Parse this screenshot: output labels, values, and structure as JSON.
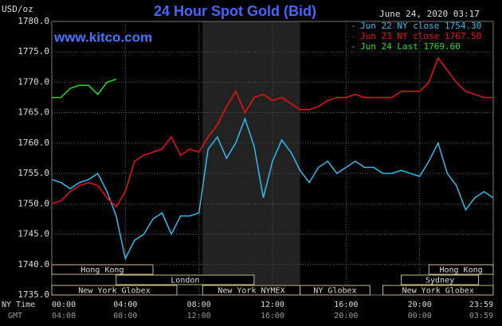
{
  "chart_data": {
    "type": "line",
    "title": "24 Hour Spot Gold (Bid)",
    "source": "www.kitco.com",
    "timestamp": "June 24, 2020 03:17",
    "y_label": "USD/oz",
    "x_label": "NY Time",
    "x2_label": "GMT",
    "x": [
      0,
      0.5,
      1,
      1.5,
      2,
      2.5,
      3,
      3.5,
      4,
      4.5,
      5,
      5.5,
      6,
      6.5,
      7,
      7.5,
      8,
      8.5,
      9,
      9.5,
      10,
      10.5,
      11,
      11.5,
      12,
      12.5,
      13,
      13.5,
      14,
      14.5,
      15,
      15.5,
      16,
      16.5,
      17,
      17.5,
      18,
      18.5,
      19,
      19.5,
      20,
      20.5,
      21,
      21.5,
      22,
      22.5,
      23,
      23.5,
      24
    ],
    "series": [
      {
        "name": "Jun 22 NY close 1754.30",
        "color": "#33bbee",
        "values": [
          1754,
          1753.5,
          1752.5,
          1753.5,
          1754,
          1755,
          1752,
          1748,
          1741,
          1744,
          1745,
          1747.5,
          1748.5,
          1745,
          1748,
          1748,
          1748.5,
          1759,
          1761,
          1757.5,
          1760,
          1764,
          1759.5,
          1751,
          1757,
          1760.5,
          1758.5,
          1755.5,
          1753.5,
          1756,
          1757,
          1755,
          1756,
          1757,
          1756,
          1756,
          1755,
          1755,
          1755.5,
          1755,
          1754.5,
          1757,
          1760,
          1755,
          1753,
          1749,
          1751,
          1752,
          1751
        ]
      },
      {
        "name": "Jun 23 NY close 1767.50",
        "color": "#ee1111",
        "values": [
          1750,
          1750.5,
          1752,
          1753,
          1753.5,
          1753,
          1751,
          1749.5,
          1752,
          1757,
          1758,
          1758.5,
          1759,
          1761,
          1758,
          1759,
          1758.5,
          1761,
          1763,
          1766,
          1768.5,
          1765,
          1767.5,
          1768,
          1767,
          1767.5,
          1766.5,
          1765.5,
          1765.5,
          1766,
          1767,
          1767.5,
          1767.5,
          1768,
          1767.5,
          1767.5,
          1767.5,
          1767.5,
          1768.5,
          1768.5,
          1768.5,
          1770,
          1774,
          1772,
          1770,
          1768.5,
          1768,
          1767.5,
          1767.5
        ]
      },
      {
        "name": "Jun 24 Last 1769.60",
        "color": "#22dd22",
        "values": [
          1767.5,
          1767.5,
          1769,
          1769.5,
          1769.5,
          1768,
          1770,
          1770.5,
          null,
          null,
          null,
          null,
          null,
          null,
          null,
          null,
          null,
          null,
          null,
          null,
          null,
          null,
          null,
          null,
          null,
          null,
          null,
          null,
          null,
          null,
          null,
          null,
          null,
          null,
          null,
          null,
          null,
          null,
          null,
          null,
          null,
          null,
          null,
          null,
          null,
          null,
          null,
          null,
          null
        ]
      }
    ],
    "xlim": [
      0,
      24
    ],
    "xticks": [
      {
        "value": 0,
        "label": "00:00"
      },
      {
        "value": 4,
        "label": "04:00"
      },
      {
        "value": 8,
        "label": "08:00"
      },
      {
        "value": 12,
        "label": "12:00"
      },
      {
        "value": 16,
        "label": "16:00"
      },
      {
        "value": 20,
        "label": "20:00"
      },
      {
        "value": 24,
        "label": "23:59"
      }
    ],
    "x2ticks": [
      "04:00",
      "08:00",
      "12:00",
      "16:00",
      "20:00",
      "00:00",
      "03:59"
    ],
    "ylim": [
      1735,
      1780
    ],
    "yticks": [
      {
        "value": 1735,
        "label": "1735.0"
      },
      {
        "value": 1740,
        "label": "1740.0"
      },
      {
        "value": 1745,
        "label": "1745.0"
      },
      {
        "value": 1750,
        "label": "1750.0"
      },
      {
        "value": 1755,
        "label": "1755.0"
      },
      {
        "value": 1760,
        "label": "1760.0"
      },
      {
        "value": 1765,
        "label": "1765.0"
      },
      {
        "value": 1770,
        "label": "1770.0"
      },
      {
        "value": 1775,
        "label": "1775.0"
      },
      {
        "value": 1780,
        "label": "1780.0"
      }
    ],
    "grid": true,
    "sessions": [
      {
        "label": "Hong Kong",
        "start": 0,
        "end": 5.5
      },
      {
        "label": "Hong Kong",
        "start": 20.5,
        "end": 24
      },
      {
        "label": "London",
        "start": 3.5,
        "end": 11
      },
      {
        "label": "Sydney",
        "start": 19,
        "end": 23.2
      },
      {
        "label": "New York Globex",
        "start": 0,
        "end": 6.8
      },
      {
        "label": "New York NYMEX",
        "start": 8.2,
        "end": 13.5
      },
      {
        "label": "NY Globex",
        "start": 13.5,
        "end": 17.3
      },
      {
        "label": "New York Globex",
        "start": 18,
        "end": 24
      }
    ]
  }
}
